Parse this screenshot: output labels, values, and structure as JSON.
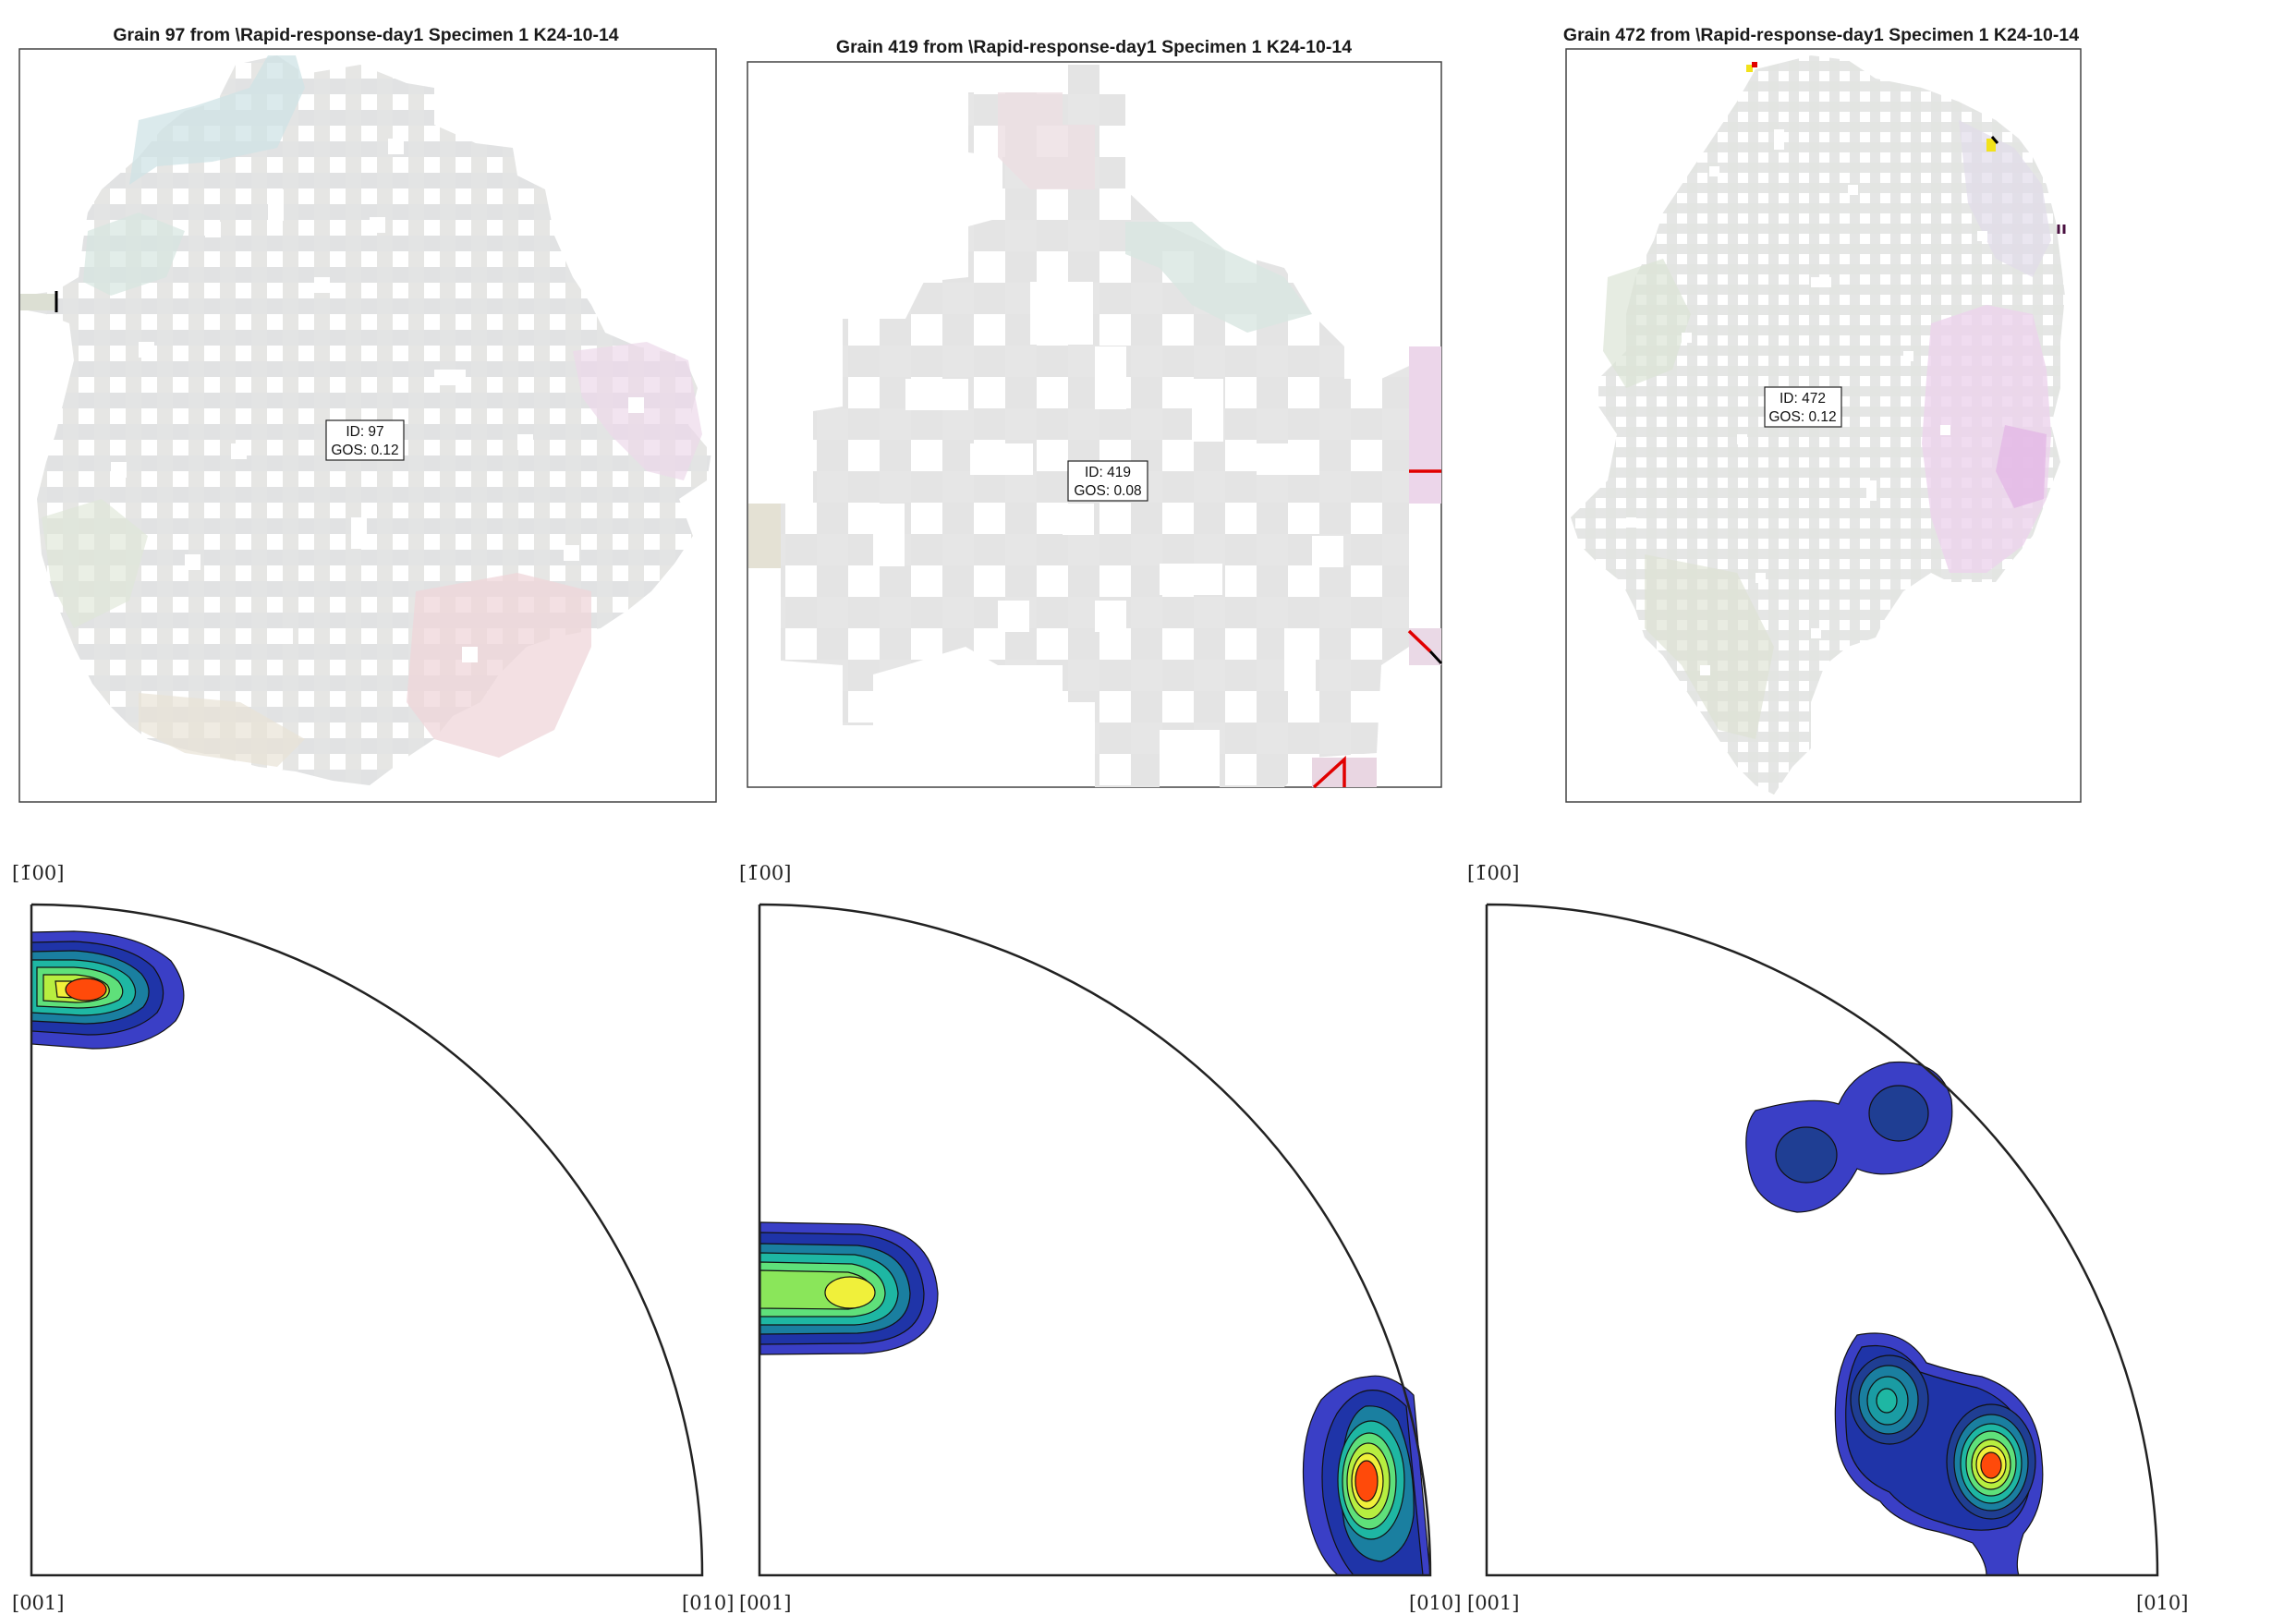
{
  "maps": [
    {
      "title": "Grain 97 from \\Rapid-response-day1 Specimen 1 K24-10-14",
      "id_line": "ID: 97",
      "gos_line": "GOS: 0.12"
    },
    {
      "title": "Grain 419 from \\Rapid-response-day1 Specimen 1 K24-10-14",
      "id_line": "ID: 419",
      "gos_line": "GOS: 0.08"
    },
    {
      "title": "Grain 472 from \\Rapid-response-day1 Specimen 1 K24-10-14",
      "id_line": "ID: 472",
      "gos_line": "GOS: 0.12"
    }
  ],
  "pole_figures": [
    {
      "top_label": "[1̄00]",
      "bottom_left_label": "[001]",
      "bottom_right_label": "[010]"
    },
    {
      "top_label": "[1̄00]",
      "bottom_left_label": "[001]",
      "bottom_right_label": "[010]"
    },
    {
      "top_label": "[1̄00]",
      "bottom_left_label": "[001]",
      "bottom_right_label": "[010]"
    }
  ],
  "colors": {
    "contour_levels": [
      "#3a3fc6",
      "#1f34a8",
      "#1f3e93",
      "#1a7fa0",
      "#1eb7a3",
      "#5fe07a",
      "#b7ee40",
      "#f0f03a",
      "#ff4a0a"
    ],
    "map_base": "#e4e4e4",
    "boundary_red": "#e10000",
    "boundary_black": "#000000"
  }
}
